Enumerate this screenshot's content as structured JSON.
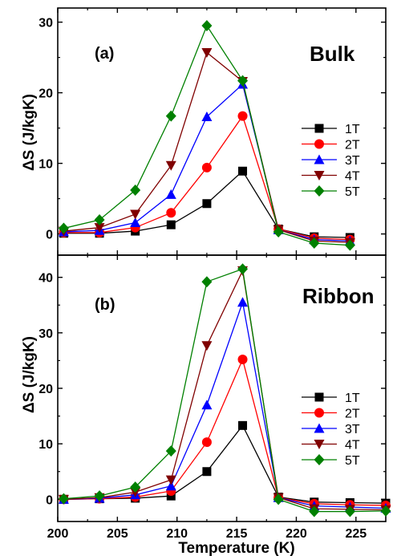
{
  "chart_data": [
    {
      "type": "line",
      "panel_label": "(a)",
      "sample_label": "Bulk",
      "ylabel": "ΔS (J/kgK)",
      "xlabel": "",
      "xlim": [
        200,
        227.5
      ],
      "ylim": [
        -3,
        32
      ],
      "xticks": [
        "200",
        "205",
        "210",
        "215",
        "220",
        "225"
      ],
      "yticks": [
        "0",
        "10",
        "20",
        "30"
      ],
      "x": [
        200.5,
        203.5,
        206.5,
        209.5,
        212.5,
        215.5,
        218.5,
        221.5,
        224.5
      ],
      "series": [
        {
          "name": "1T",
          "color": "#000000",
          "marker": "square",
          "values": [
            0.1,
            0.1,
            0.4,
            1.3,
            4.3,
            8.9,
            0.7,
            -0.4,
            -0.5
          ]
        },
        {
          "name": "2T",
          "color": "#ff0000",
          "marker": "circle",
          "values": [
            0.2,
            0.2,
            0.9,
            3.0,
            9.4,
            16.7,
            0.7,
            -0.6,
            -0.8
          ]
        },
        {
          "name": "3T",
          "color": "#0000ff",
          "marker": "triangle-up",
          "values": [
            0.3,
            0.5,
            1.6,
            5.6,
            16.6,
            21.2,
            0.6,
            -0.8,
            -1.0
          ]
        },
        {
          "name": "4T",
          "color": "#800000",
          "marker": "triangle-down",
          "values": [
            0.4,
            0.9,
            2.8,
            9.7,
            25.7,
            21.6,
            0.6,
            -1.0,
            -1.2
          ]
        },
        {
          "name": "5T",
          "color": "#008000",
          "marker": "diamond",
          "values": [
            0.8,
            2.0,
            6.2,
            16.7,
            29.5,
            21.7,
            0.3,
            -1.3,
            -1.6
          ]
        }
      ],
      "legend": "right"
    },
    {
      "type": "line",
      "panel_label": "(b)",
      "sample_label": "Ribbon",
      "ylabel": "ΔS (J/kgK)",
      "xlabel": "Temperature (K)",
      "xlim": [
        200,
        227.5
      ],
      "ylim": [
        -4,
        44
      ],
      "xticks": [
        "200",
        "205",
        "210",
        "215",
        "220",
        "225"
      ],
      "yticks": [
        "0",
        "10",
        "20",
        "30",
        "40"
      ],
      "x": [
        200.5,
        203.5,
        206.5,
        209.5,
        212.5,
        215.5,
        218.5,
        221.5,
        224.5,
        227.5
      ],
      "series": [
        {
          "name": "1T",
          "color": "#000000",
          "marker": "square",
          "values": [
            0.0,
            0.1,
            0.2,
            0.6,
            5.0,
            13.3,
            0.4,
            -0.5,
            -0.6,
            -0.7
          ]
        },
        {
          "name": "2T",
          "color": "#ff0000",
          "marker": "circle",
          "values": [
            0.0,
            0.1,
            0.4,
            1.5,
            10.3,
            25.2,
            0.3,
            -0.8,
            -1.0,
            -1.1
          ]
        },
        {
          "name": "3T",
          "color": "#0000ff",
          "marker": "triangle-up",
          "values": [
            0.0,
            0.2,
            0.8,
            2.4,
            17.0,
            35.5,
            0.3,
            -1.2,
            -1.4,
            -1.6
          ]
        },
        {
          "name": "4T",
          "color": "#800000",
          "marker": "triangle-down",
          "values": [
            0.0,
            0.3,
            1.3,
            3.5,
            27.7,
            41.2,
            0.3,
            -1.7,
            -1.8,
            -1.9
          ]
        },
        {
          "name": "5T",
          "color": "#008000",
          "marker": "diamond",
          "values": [
            0.1,
            0.6,
            2.2,
            8.7,
            39.2,
            41.5,
            0.0,
            -2.2,
            -2.2,
            -2.1
          ]
        }
      ],
      "legend": "right"
    }
  ]
}
